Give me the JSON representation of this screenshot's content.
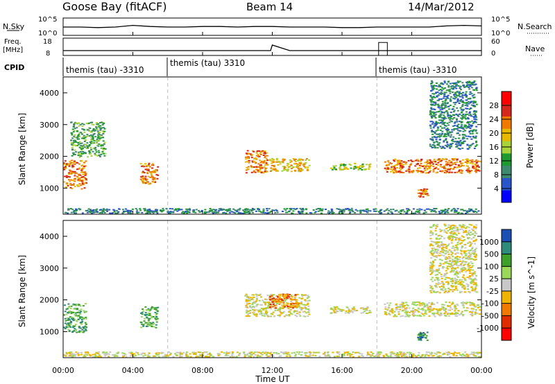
{
  "header": {
    "station": "Goose Bay (fitACF)",
    "beam": "Beam 14",
    "date": "14/Mar/2012"
  },
  "colors": {
    "range_fill": "#c8c8c8",
    "power_scale": [
      "#0000ff",
      "#2a55c8",
      "#3d8a6e",
      "#1f9a2f",
      "#a8d43a",
      "#e6b800",
      "#f07a00",
      "#d4281c",
      "#ff0000"
    ],
    "velocity_scale": [
      "#ff0000",
      "#e02d00",
      "#f07a00",
      "#f0b400",
      "#c8c8c8",
      "#9ad85a",
      "#3da02a",
      "#2e8a7a",
      "#1a4fb4"
    ]
  },
  "chart_data": [
    {
      "type": "line",
      "name": "noise_and_search",
      "left_label": "N.Sky",
      "right_label": "N.Search",
      "left_ticks": [
        "10^5",
        "10^0"
      ],
      "right_ticks": [
        "10^5",
        "10^0"
      ],
      "x": [
        0,
        1,
        2,
        3,
        4,
        5,
        6,
        7,
        8,
        9,
        10,
        11,
        12,
        13,
        14,
        15,
        16,
        17,
        18,
        19,
        20,
        21,
        22,
        23,
        24
      ],
      "values": [
        1.5,
        1.5,
        1.4,
        1.5,
        1.8,
        1.6,
        1.5,
        1.5,
        1.6,
        1.6,
        1.5,
        1.6,
        1.6,
        1.5,
        1.5,
        1.5,
        1.4,
        1.4,
        1.5,
        1.5,
        1.5,
        1.5,
        1.7,
        1.8,
        1.7
      ]
    },
    {
      "type": "line",
      "name": "frequency_and_nave",
      "left_label": "Freq.",
      "left_unit": "[MHz]",
      "right_label": "Nave",
      "left_ticks": [
        "18",
        "8"
      ],
      "right_ticks": [
        "60",
        "0"
      ],
      "x": [
        0,
        1,
        2,
        3,
        4,
        5,
        6,
        7,
        8,
        9,
        10,
        11,
        11.9,
        12,
        13,
        14,
        15,
        16,
        17,
        18,
        19,
        20,
        21,
        22,
        23,
        24
      ],
      "values": [
        10.8,
        10.8,
        10.8,
        10.8,
        10.8,
        10.8,
        10.8,
        10.8,
        10.8,
        10.8,
        10.8,
        10.8,
        10.8,
        14,
        10.8,
        10.8,
        10.8,
        10.8,
        10.8,
        10.8,
        10.8,
        10.8,
        10.8,
        10.8,
        10.8,
        10.8
      ],
      "nave_pulse": {
        "start": 18.1,
        "end": 18.6,
        "value": 45
      }
    },
    {
      "type": "table",
      "name": "cpid",
      "label": "CPID",
      "segments": [
        {
          "start": 0,
          "end": 6,
          "text": "themis (tau) -3310"
        },
        {
          "start": 6,
          "end": 18,
          "text": "themis (tau) 3310"
        },
        {
          "start": 18,
          "end": 24,
          "text": "themis (tau) -3310"
        }
      ]
    },
    {
      "type": "heatmap",
      "name": "power",
      "ylabel": "Slant Range [km]",
      "yticks": [
        "4000",
        "3000",
        "2000",
        "1000"
      ],
      "ylim": [
        180,
        4500
      ],
      "colorbar_label": "Power [dB]",
      "colorbar_ticks": [
        "28",
        "24",
        "20",
        "16",
        "12",
        "8",
        "4"
      ],
      "clim": [
        0,
        32
      ],
      "regions": [
        {
          "t0": 0.0,
          "t1": 1.4,
          "r0": 950,
          "r1": 1900,
          "level": 6
        },
        {
          "t0": 0.4,
          "t1": 2.5,
          "r0": 1950,
          "r1": 3100,
          "level": 3
        },
        {
          "t0": 4.4,
          "t1": 5.5,
          "r0": 1100,
          "r1": 1800,
          "level": 6
        },
        {
          "t0": 10.4,
          "t1": 11.8,
          "r0": 1450,
          "r1": 2200,
          "level": 6
        },
        {
          "t0": 11.8,
          "t1": 14.2,
          "r0": 1500,
          "r1": 1950,
          "level": 5
        },
        {
          "t0": 15.3,
          "t1": 17.7,
          "r0": 1550,
          "r1": 1800,
          "level": 4
        },
        {
          "t0": 18.4,
          "t1": 24.0,
          "r0": 1450,
          "r1": 1950,
          "level": 6
        },
        {
          "t0": 20.3,
          "t1": 21.0,
          "r0": 700,
          "r1": 1000,
          "level": 6
        },
        {
          "t0": 21.0,
          "t1": 23.8,
          "r0": 2200,
          "r1": 4400,
          "level": 2
        },
        {
          "t0": 0.0,
          "t1": 24.0,
          "r0": 180,
          "r1": 380,
          "level": 2
        }
      ]
    },
    {
      "type": "heatmap",
      "name": "velocity",
      "ylabel": "Slant Range [km]",
      "yticks": [
        "4000",
        "3000",
        "2000",
        "1000"
      ],
      "ylim": [
        180,
        4500
      ],
      "colorbar_label": "Velocity [m s^-1]",
      "colorbar_ticks": [
        "1000",
        "500",
        "100",
        "25",
        "-25",
        "-100",
        "-500",
        "-1000"
      ],
      "xlabel": "Time UT",
      "xticks": [
        "00:00",
        "04:00",
        "08:00",
        "12:00",
        "16:00",
        "20:00",
        "00:00"
      ],
      "xlim": [
        0,
        24
      ],
      "regions": [
        {
          "t0": 0.0,
          "t1": 1.4,
          "r0": 950,
          "r1": 1900,
          "level": 6
        },
        {
          "t0": 4.4,
          "t1": 5.5,
          "r0": 1100,
          "r1": 1800,
          "level": 6
        },
        {
          "t0": 10.4,
          "t1": 14.2,
          "r0": 1450,
          "r1": 2200,
          "level": 4
        },
        {
          "t0": 11.8,
          "t1": 13.6,
          "r0": 1700,
          "r1": 2200,
          "level": 2
        },
        {
          "t0": 15.3,
          "t1": 17.7,
          "r0": 1550,
          "r1": 1800,
          "level": 4
        },
        {
          "t0": 18.4,
          "t1": 24.0,
          "r0": 1450,
          "r1": 1950,
          "level": 4
        },
        {
          "t0": 20.3,
          "t1": 21.0,
          "r0": 700,
          "r1": 1000,
          "level": 7
        },
        {
          "t0": 21.0,
          "t1": 23.8,
          "r0": 2200,
          "r1": 4400,
          "level": 4
        },
        {
          "t0": 0.0,
          "t1": 24.0,
          "r0": 180,
          "r1": 380,
          "level": 4
        }
      ]
    }
  ]
}
